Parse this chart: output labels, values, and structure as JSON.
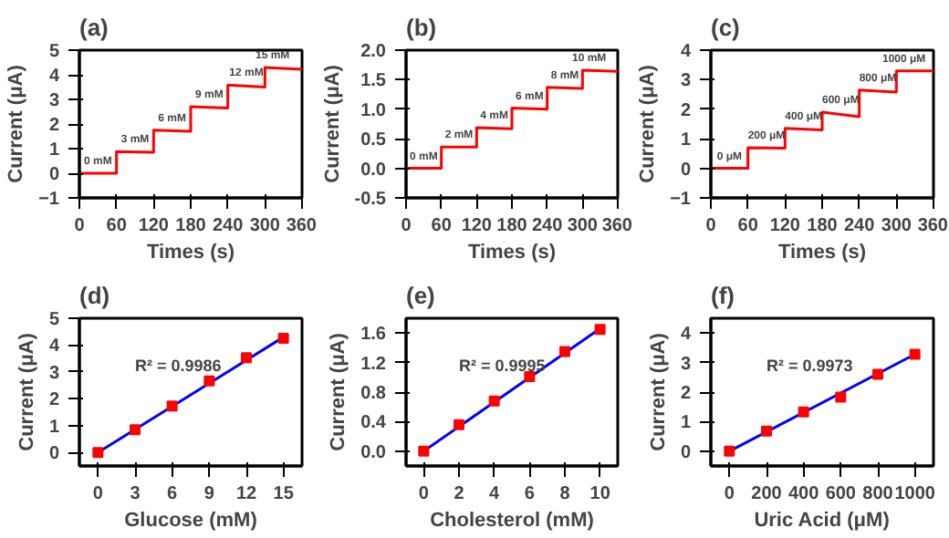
{
  "chart_data": [
    {
      "type": "line",
      "title": "(a)",
      "xlabel": "Times (s)",
      "ylabel": "Current (μA)",
      "xlim": [
        0,
        360
      ],
      "xticks": [
        0,
        60,
        120,
        180,
        240,
        300,
        360
      ],
      "ylim": [
        -1,
        5
      ],
      "yticks": [
        -1,
        0,
        1,
        2,
        3,
        4,
        5
      ],
      "series": [
        {
          "color": "#ff0000",
          "x": [
            0,
            60,
            60,
            120,
            120,
            180,
            180,
            240,
            240,
            300,
            300,
            360
          ],
          "values": [
            0,
            0,
            0.88,
            0.85,
            1.75,
            1.7,
            2.7,
            2.65,
            3.58,
            3.5,
            4.3,
            4.22
          ]
        }
      ],
      "annotations": [
        {
          "text": "0 mM",
          "x": 30,
          "y": 0
        },
        {
          "text": "3 mM",
          "x": 90,
          "y": 0.88
        },
        {
          "text": "6 mM",
          "x": 150,
          "y": 1.75
        },
        {
          "text": "9 mM",
          "x": 210,
          "y": 2.7
        },
        {
          "text": "12 mM",
          "x": 270,
          "y": 3.58
        },
        {
          "text": "15 mM",
          "x": 330,
          "y": 4.3
        }
      ]
    },
    {
      "type": "line",
      "title": "(b)",
      "xlabel": "Times (s)",
      "ylabel": "Current (μA)",
      "xlim": [
        0,
        360
      ],
      "xticks": [
        0,
        60,
        120,
        180,
        240,
        300,
        360
      ],
      "ylim": [
        -0.5,
        2.0
      ],
      "yticks": [
        {
          "value": -0.5,
          "label": "-0.5"
        },
        {
          "value": 0,
          "label": "0.0"
        },
        {
          "value": 0.5,
          "label": "0.5"
        },
        {
          "value": 1,
          "label": "1.0"
        },
        {
          "value": 1.5,
          "label": "1.5"
        },
        {
          "value": 2,
          "label": "2.0"
        }
      ],
      "series": [
        {
          "color": "#ff0000",
          "x": [
            0,
            60,
            60,
            120,
            120,
            180,
            180,
            240,
            240,
            300,
            300,
            360
          ],
          "values": [
            0,
            0,
            0.36,
            0.36,
            0.69,
            0.67,
            1.02,
            1.0,
            1.37,
            1.35,
            1.66,
            1.64
          ]
        }
      ],
      "annotations": [
        {
          "text": "0 mM",
          "x": 30,
          "y": 0
        },
        {
          "text": "2 mM",
          "x": 90,
          "y": 0.36
        },
        {
          "text": "4 mM",
          "x": 150,
          "y": 0.69
        },
        {
          "text": "6 mM",
          "x": 210,
          "y": 1.02
        },
        {
          "text": "8 mM",
          "x": 270,
          "y": 1.37
        },
        {
          "text": "10 mM",
          "x": 330,
          "y": 1.66
        }
      ]
    },
    {
      "type": "line",
      "title": "(c)",
      "xlabel": "Times (s)",
      "ylabel": "Current (μA)",
      "xlim": [
        0,
        360
      ],
      "xticks": [
        0,
        60,
        120,
        180,
        240,
        300,
        360
      ],
      "ylim": [
        -1,
        4
      ],
      "yticks": [
        -1,
        0,
        1,
        2,
        3,
        4
      ],
      "series": [
        {
          "color": "#ff0000",
          "x": [
            0,
            60,
            60,
            120,
            120,
            180,
            180,
            240,
            240,
            300,
            300,
            360
          ],
          "values": [
            0,
            0,
            0.7,
            0.68,
            1.35,
            1.3,
            1.9,
            1.75,
            2.65,
            2.58,
            3.3,
            3.3
          ]
        }
      ],
      "annotations": [
        {
          "text": "0 μM",
          "x": 30,
          "y": 0
        },
        {
          "text": "200 μM",
          "x": 90,
          "y": 0.7
        },
        {
          "text": "400 μM",
          "x": 150,
          "y": 1.35
        },
        {
          "text": "600 μM",
          "x": 210,
          "y": 1.9
        },
        {
          "text": "800 μM",
          "x": 270,
          "y": 2.65
        },
        {
          "text": "1000 μM",
          "x": 330,
          "y": 3.3
        }
      ]
    },
    {
      "type": "scatter",
      "title": "(d)",
      "xlabel": "Glucose (mM)",
      "ylabel": "Current (μA)",
      "xlim": [
        -1.5,
        16.5
      ],
      "xticks": [
        0,
        3,
        6,
        9,
        12,
        15
      ],
      "ylim": [
        -0.5,
        5
      ],
      "yticks": [
        0,
        1,
        2,
        3,
        4,
        5
      ],
      "series": [
        {
          "type": "line",
          "color": "#0000ff",
          "x": [
            0,
            15
          ],
          "values": [
            0,
            4.3
          ]
        },
        {
          "color": "#ff0000",
          "marker": "square",
          "x": [
            0,
            3,
            6,
            9,
            12,
            15
          ],
          "values": [
            0,
            0.85,
            1.73,
            2.67,
            3.53,
            4.25
          ]
        }
      ],
      "annotations": [
        "R² = 0.9986"
      ]
    },
    {
      "type": "scatter",
      "title": "(e)",
      "xlabel": "Cholesterol (mM)",
      "ylabel": "Current (μA)",
      "xlim": [
        -1,
        11
      ],
      "xticks": [
        0,
        2,
        4,
        6,
        8,
        10
      ],
      "ylim": [
        -0.2,
        1.8
      ],
      "yticks": [
        {
          "value": 0,
          "label": "0.0"
        },
        {
          "value": 0.4,
          "label": "0.4"
        },
        {
          "value": 0.8,
          "label": "0.8"
        },
        {
          "value": 1.2,
          "label": "1.2"
        },
        {
          "value": 1.6,
          "label": "1.6"
        }
      ],
      "series": [
        {
          "type": "line",
          "color": "#0000ff",
          "x": [
            0,
            10
          ],
          "values": [
            0,
            1.66
          ]
        },
        {
          "color": "#ff0000",
          "marker": "square",
          "x": [
            0,
            2,
            4,
            6,
            8,
            10
          ],
          "values": [
            0,
            0.36,
            0.68,
            1.01,
            1.35,
            1.65
          ]
        }
      ],
      "annotations": [
        "R² = 0.9995"
      ]
    },
    {
      "type": "scatter",
      "title": "(f)",
      "xlabel": "Uric Acid (μM)",
      "ylabel": "Current (μA)",
      "xlim": [
        -100,
        1100
      ],
      "xticks": [
        0,
        200,
        400,
        600,
        800,
        1000
      ],
      "ylim": [
        -0.5,
        4.5
      ],
      "yticks": [
        0,
        1,
        2,
        3,
        4
      ],
      "series": [
        {
          "type": "line",
          "color": "#0000ff",
          "x": [
            0,
            1000
          ],
          "values": [
            0,
            3.28
          ]
        },
        {
          "color": "#ff0000",
          "marker": "square",
          "x": [
            0,
            200,
            400,
            600,
            800,
            1000
          ],
          "values": [
            0,
            0.68,
            1.33,
            1.83,
            2.6,
            3.28
          ]
        }
      ],
      "annotations": [
        "R² = 0.9973"
      ]
    }
  ]
}
